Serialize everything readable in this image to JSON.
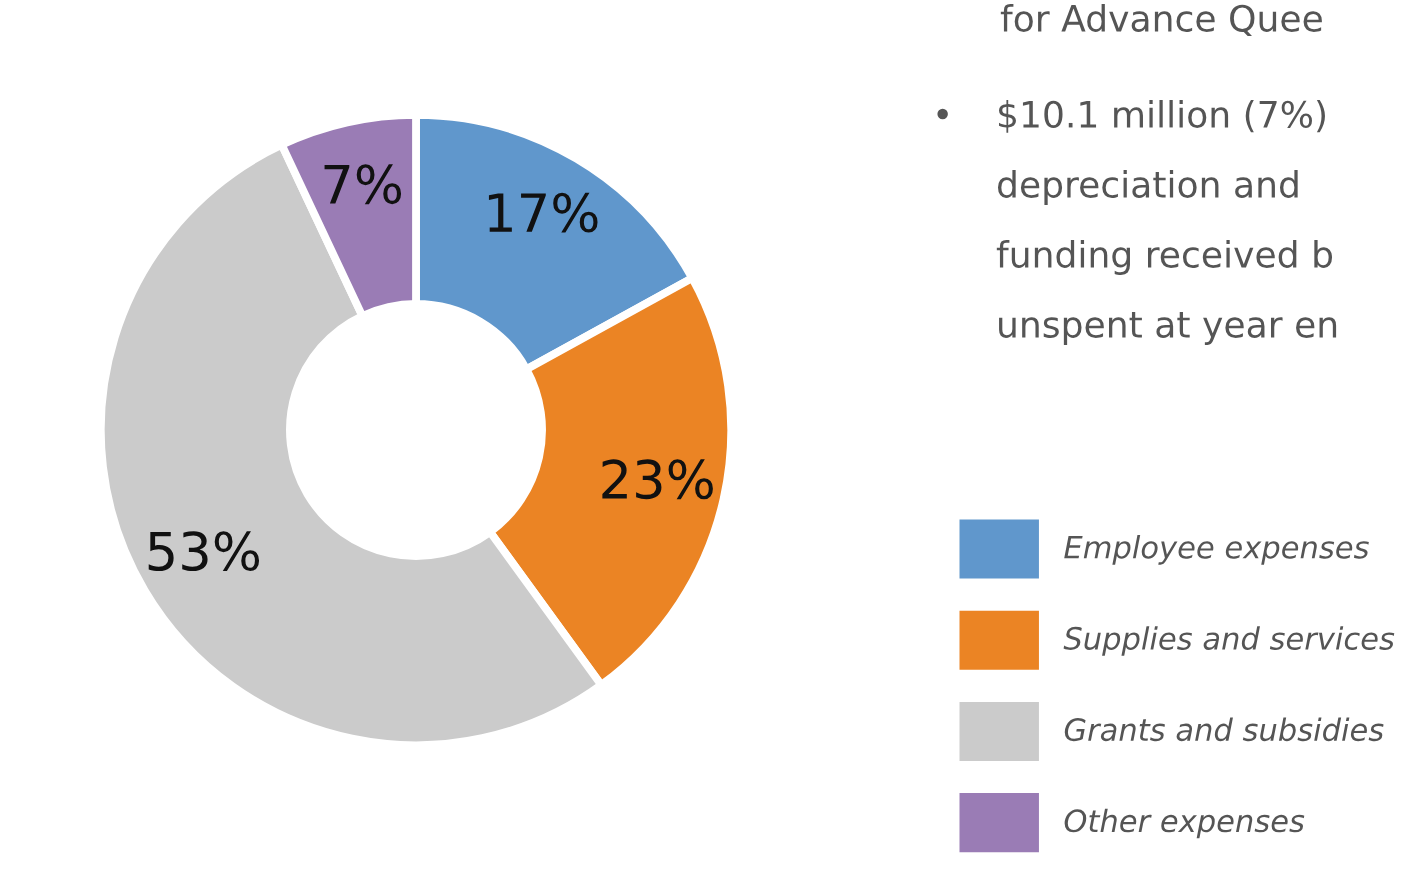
{
  "chart_data": {
    "type": "donut",
    "categories": [
      "Employee expenses",
      "Supplies and services",
      "Grants and subsidies",
      "Other expenses"
    ],
    "values": [
      17,
      23,
      53,
      7
    ],
    "colors": [
      "#6097cc",
      "#eb8424",
      "#cbcbcb",
      "#9a7cb5"
    ],
    "value_labels": [
      "17%",
      "23%",
      "53%",
      "7%"
    ],
    "legend": "right",
    "annotations": [
      "for Advance Quee",
      "•",
      "$10.1 million (7%)",
      "depreciation and",
      "funding received b",
      "unspent at year en"
    ]
  }
}
